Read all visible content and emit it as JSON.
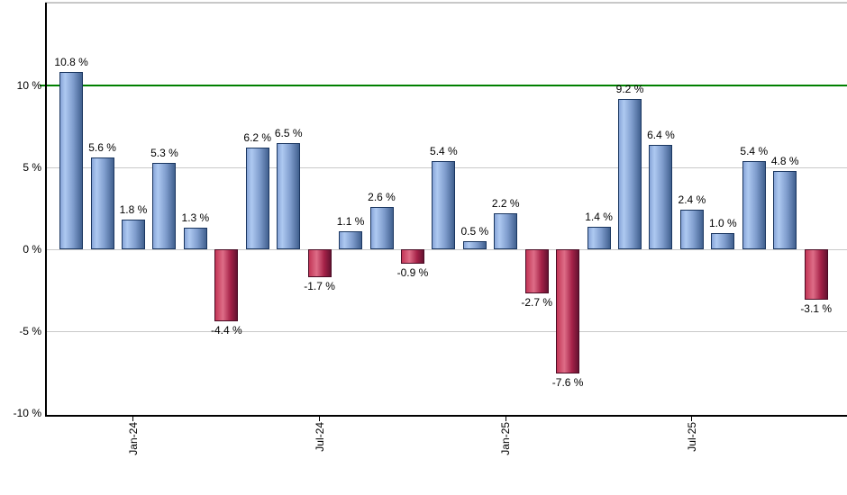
{
  "chart_data": {
    "type": "bar",
    "title": "",
    "value_suffix": " %",
    "bars": [
      {
        "label": "10.8 %",
        "value": 10.8
      },
      {
        "label": "5.6 %",
        "value": 5.6
      },
      {
        "label": "1.8 %",
        "value": 1.8
      },
      {
        "label": "5.3 %",
        "value": 5.3
      },
      {
        "label": "1.3 %",
        "value": 1.3
      },
      {
        "label": "-4.4 %",
        "value": -4.4
      },
      {
        "label": "6.2 %",
        "value": 6.2
      },
      {
        "label": "6.5 %",
        "value": 6.5
      },
      {
        "label": "-1.7 %",
        "value": -1.7
      },
      {
        "label": "1.1 %",
        "value": 1.1
      },
      {
        "label": "2.6 %",
        "value": 2.6
      },
      {
        "label": "-0.9 %",
        "value": -0.9
      },
      {
        "label": "5.4 %",
        "value": 5.4
      },
      {
        "label": "0.5 %",
        "value": 0.5
      },
      {
        "label": "2.2 %",
        "value": 2.2
      },
      {
        "label": "-2.7 %",
        "value": -2.7
      },
      {
        "label": "-7.6 %",
        "value": -7.6
      },
      {
        "label": "1.4 %",
        "value": 1.4
      },
      {
        "label": "9.2 %",
        "value": 9.2
      },
      {
        "label": "6.4 %",
        "value": 6.4
      },
      {
        "label": "2.4 %",
        "value": 2.4
      },
      {
        "label": "1.0 %",
        "value": 1.0
      },
      {
        "label": "5.4 %",
        "value": 5.4
      },
      {
        "label": "4.8 %",
        "value": 4.8
      },
      {
        "label": "-3.1 %",
        "value": -3.1
      }
    ],
    "x_ticks": [
      {
        "label": "Jan-24",
        "bar_index": 2
      },
      {
        "label": "Jul-24",
        "bar_index": 8
      },
      {
        "label": "Jan-25",
        "bar_index": 14
      },
      {
        "label": "Jul-25",
        "bar_index": 20
      }
    ],
    "y_ticks": [
      {
        "label": "10 %",
        "value": 10,
        "gridline": false
      },
      {
        "label": "5 %",
        "value": 5,
        "gridline": true
      },
      {
        "label": "0 %",
        "value": 0,
        "gridline": true
      },
      {
        "label": "-5 %",
        "value": -5,
        "gridline": true
      },
      {
        "label": "-10 %",
        "value": -10,
        "gridline": false
      }
    ],
    "ylim": [
      -10,
      15
    ],
    "reference_line": {
      "value": 10,
      "color": "#008000"
    },
    "grid": true,
    "legend": null,
    "colors": {
      "background": "#ffffff",
      "gridline": "#c9c9c9",
      "axis": "#000000",
      "top_border": "#c8c8c8",
      "label_text": "#000000",
      "positive": {
        "border": "#1a3660",
        "stops": [
          "#87a5d8",
          "#aec9f1",
          "#7e9ccc",
          "#41608f"
        ]
      },
      "negative": {
        "border": "#4a0b24",
        "stops": [
          "#c23556",
          "#de6d87",
          "#a52248",
          "#661231"
        ]
      }
    }
  }
}
